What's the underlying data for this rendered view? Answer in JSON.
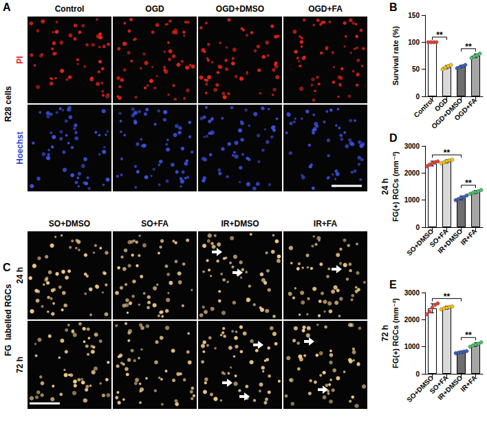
{
  "images": [
    {
      "label": "A",
      "side_label": "R28 cells",
      "columns": [
        "Control",
        "OGD",
        "OGD+DMSO",
        "OGD+FA"
      ],
      "rows": [
        {
          "name": "PI",
          "color": "#e8241c",
          "label_color": "#e8241c"
        },
        {
          "name": "Hoechst",
          "color": "#3a52e0",
          "label_color": "#2b3fd6"
        }
      ]
    },
    {
      "label": "C",
      "side_label": "FG  labelled RGCs",
      "columns": [
        "SO+DMSO",
        "SO+FA",
        "IR+DMSO",
        "IR+FA"
      ],
      "rows": [
        {
          "name": "24 h",
          "color": "#f2c98c",
          "label_color": "#000000"
        },
        {
          "name": "72 h",
          "color": "#f2c98c",
          "label_color": "#000000"
        }
      ]
    }
  ],
  "chart_data": [
    {
      "type": "bar",
      "label": "B",
      "y_label": "Survival rate (%)",
      "categories": [
        "Control",
        "OGD",
        "OGD+DMSO",
        "OGD+FA"
      ],
      "values": [
        100,
        54,
        55,
        75
      ],
      "errors": [
        0.5,
        3,
        2.5,
        3.5
      ],
      "points": [
        {
          "color": "#e8413a",
          "values": [
            100,
            100,
            100,
            100
          ]
        },
        {
          "color": "#f5c518",
          "values": [
            50,
            53,
            56,
            58
          ]
        },
        {
          "color": "#3c5fbf",
          "values": [
            52,
            54,
            56,
            58
          ]
        },
        {
          "color": "#4cc26a",
          "values": [
            71,
            74,
            76,
            79
          ]
        }
      ],
      "colors": [
        "#ffffff",
        "#d9d9d9",
        "#6e6e6e",
        "#a6a6a6"
      ],
      "ylim": [
        0,
        150
      ],
      "yticks": [
        0,
        50,
        100,
        150
      ],
      "grid": false,
      "significance": [
        {
          "from": "Control",
          "to": "OGD",
          "label": "**"
        },
        {
          "from": "OGD+DMSO",
          "to": "OGD+FA",
          "label": "**"
        }
      ]
    },
    {
      "type": "bar",
      "label": "D",
      "side_label": "24 h",
      "y_label": "FG(+) RGCs (mm⁻²)",
      "categories": [
        "SO+DMSO",
        "SO+FA",
        "IR+DMSO",
        "IR+FA"
      ],
      "values": [
        2350,
        2430,
        1080,
        1300
      ],
      "errors": [
        90,
        60,
        70,
        60
      ],
      "points": [
        {
          "color": "#e8413a",
          "values": [
            2250,
            2310,
            2360,
            2400,
            2430
          ]
        },
        {
          "color": "#f5c518",
          "values": [
            2360,
            2400,
            2440,
            2470,
            2490
          ]
        },
        {
          "color": "#3c5fbf",
          "values": [
            1000,
            1040,
            1080,
            1110,
            1170
          ]
        },
        {
          "color": "#4cc26a",
          "values": [
            1230,
            1270,
            1300,
            1330,
            1370
          ]
        }
      ],
      "colors": [
        "#ffffff",
        "#d9d9d9",
        "#6e6e6e",
        "#a6a6a6"
      ],
      "ylim": [
        0,
        3000
      ],
      "yticks": [
        0,
        1000,
        2000,
        3000
      ],
      "grid": false,
      "significance": [
        {
          "from": "SO+DMSO",
          "to": "IR+DMSO",
          "label": "**"
        },
        {
          "from": "IR+DMSO",
          "to": "IR+FA",
          "label": "**"
        }
      ]
    },
    {
      "type": "bar",
      "label": "E",
      "side_label": "72 h",
      "y_label": "FG(+) RGCs (mm⁻²)",
      "categories": [
        "SO+DMSO",
        "SO+FA",
        "IR+DMSO",
        "IR+FA"
      ],
      "values": [
        2420,
        2440,
        800,
        1080
      ],
      "errors": [
        170,
        60,
        40,
        70
      ],
      "points": [
        {
          "color": "#e8413a",
          "values": [
            2200,
            2300,
            2450,
            2550,
            2600
          ]
        },
        {
          "color": "#f5c518",
          "values": [
            2380,
            2420,
            2440,
            2470,
            2490
          ]
        },
        {
          "color": "#3c5fbf",
          "values": [
            760,
            780,
            800,
            820,
            840
          ]
        },
        {
          "color": "#4cc26a",
          "values": [
            1000,
            1050,
            1080,
            1110,
            1160
          ]
        }
      ],
      "colors": [
        "#ffffff",
        "#d9d9d9",
        "#6e6e6e",
        "#a6a6a6"
      ],
      "ylim": [
        0,
        3000
      ],
      "yticks": [
        0,
        1000,
        2000,
        3000
      ],
      "grid": false,
      "significance": [
        {
          "from": "SO+DMSO",
          "to": "IR+DMSO",
          "label": "**"
        },
        {
          "from": "IR+DMSO",
          "to": "IR+FA",
          "label": "**"
        }
      ]
    }
  ]
}
